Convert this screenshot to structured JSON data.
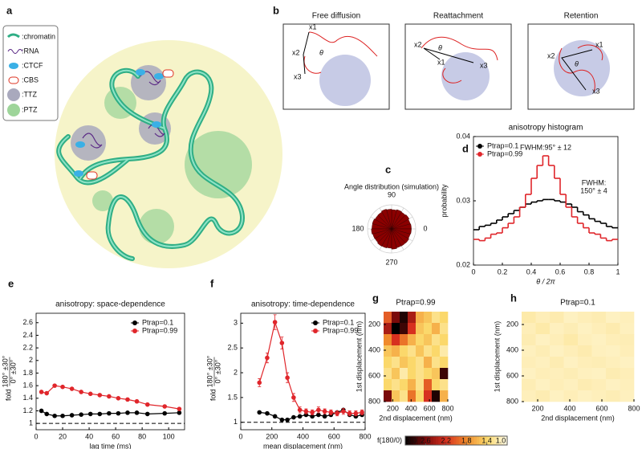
{
  "panel_labels": [
    "a",
    "b",
    "c",
    "d",
    "e",
    "f",
    "g",
    "h"
  ],
  "diagram": {
    "legend": [
      ":chromatin",
      ":RNA",
      ":CTCF",
      ":CBS",
      ":TTZ",
      ":PTZ"
    ],
    "b": [
      {
        "title": "Free diffusion",
        "labels": [
          "x1",
          "x2",
          "x3",
          "θ"
        ]
      },
      {
        "title": "Reattachment",
        "labels": [
          "x1",
          "x2",
          "x3",
          "θ"
        ]
      },
      {
        "title": "Retention",
        "labels": [
          "x1",
          "x2",
          "x3",
          "θ"
        ]
      }
    ]
  },
  "colorbar": {
    "label": "f(180/0)",
    "ticks": [
      {
        "value": 3,
        "label": "3.0"
      },
      {
        "value": 2.6,
        "label": "2.6"
      },
      {
        "value": 2.2,
        "label": "2.2"
      },
      {
        "value": 1.8,
        "label": "1.8"
      },
      {
        "value": 1.4,
        "label": "1.4"
      },
      {
        "value": 1,
        "label": "1.0"
      }
    ],
    "colors": [
      "#000000",
      "#7a0a0a",
      "#d7301f",
      "#f08a2c",
      "#fbd86b",
      "#fffbe6"
    ]
  },
  "chart_data": [
    {
      "type": "polar",
      "title": "Angle distribution (simulation)",
      "thetaticks": [
        90,
        180,
        0,
        270
      ],
      "values": [
        0.82,
        0.8,
        0.84,
        0.81,
        0.83,
        0.8,
        0.82,
        0.85,
        0.81,
        0.8,
        0.83,
        0.82,
        0.84,
        0.81,
        0.8,
        0.83,
        0.82,
        0.8,
        0.84,
        0.81,
        0.82,
        0.83,
        0.8,
        0.82
      ],
      "rlim": [
        0,
        1
      ],
      "color": "#8b0000"
    },
    {
      "type": "histogram",
      "title": "anisotropy histogram",
      "xlabel": "θ / 2π",
      "ylabel": "probability",
      "bins": [
        0,
        0.04,
        0.08,
        0.12,
        0.16,
        0.2,
        0.24,
        0.28,
        0.32,
        0.36,
        0.4,
        0.44,
        0.48,
        0.52,
        0.56,
        0.6,
        0.64,
        0.68,
        0.72,
        0.76,
        0.8,
        0.84,
        0.88,
        0.92,
        0.96,
        1
      ],
      "series": [
        {
          "name": "Ptrap=0.1",
          "color": "#000000",
          "values": [
            0.0255,
            0.026,
            0.0262,
            0.0265,
            0.027,
            0.0275,
            0.028,
            0.0285,
            0.029,
            0.0295,
            0.0298,
            0.03,
            0.0302,
            0.0302,
            0.03,
            0.0298,
            0.0295,
            0.029,
            0.0283,
            0.0278,
            0.0272,
            0.0268,
            0.0265,
            0.026,
            0.0258
          ]
        },
        {
          "name": "Ptrap=0.99",
          "color": "#e0262b",
          "values": [
            0.024,
            0.0238,
            0.0242,
            0.0248,
            0.025,
            0.0258,
            0.0265,
            0.0275,
            0.029,
            0.031,
            0.0335,
            0.0355,
            0.037,
            0.0355,
            0.0335,
            0.031,
            0.029,
            0.0275,
            0.0265,
            0.0258,
            0.025,
            0.0248,
            0.0242,
            0.0238,
            0.024
          ]
        }
      ],
      "annotations": [
        "FWHM:95° ± 12",
        "FWHM:",
        "150° ± 4"
      ],
      "xlim": [
        0,
        1
      ],
      "xticks": [
        0,
        0.2,
        0.4,
        0.6,
        0.8,
        1
      ],
      "ylim": [
        0.02,
        0.04
      ],
      "yticks": [
        0.02,
        0.03,
        0.04
      ],
      "legend": "upper left"
    },
    {
      "type": "line",
      "title": "anisotropy: space-dependence",
      "xlabel": "lag time (ms)",
      "ylabel": "fold",
      "ylabel_numerator": "180° ±30°",
      "ylabel_denominator": "0° ±30°",
      "x": [
        4,
        8,
        14,
        20,
        27,
        34,
        41,
        48,
        55,
        62,
        69,
        76,
        84,
        97,
        108
      ],
      "series": [
        {
          "name": "Ptrap=0.1",
          "color": "#000000",
          "values": [
            1.2,
            1.15,
            1.12,
            1.12,
            1.13,
            1.14,
            1.15,
            1.15,
            1.16,
            1.16,
            1.17,
            1.17,
            1.15,
            1.16,
            1.17
          ]
        },
        {
          "name": "Ptrap=0.99",
          "color": "#e0262b",
          "values": [
            1.5,
            1.48,
            1.6,
            1.58,
            1.55,
            1.5,
            1.47,
            1.45,
            1.43,
            1.4,
            1.38,
            1.35,
            1.3,
            1.27,
            1.23
          ]
        }
      ],
      "reference_line": 1,
      "xlim": [
        0,
        112
      ],
      "xticks": [
        0,
        20,
        40,
        60,
        80,
        100
      ],
      "ylim": [
        0.9,
        2.75
      ],
      "yticks": [
        1,
        1.2,
        1.4,
        1.6,
        1.8,
        2,
        2.2,
        2.4,
        2.6
      ],
      "legend": "upper right"
    },
    {
      "type": "line",
      "title": "anisotropy: time-dependence",
      "xlabel": "mean displacement (nm)",
      "ylabel": "fold",
      "ylabel_numerator": "180° ±30°",
      "ylabel_denominator": "0° ±30°",
      "x": [
        120,
        170,
        220,
        265,
        300,
        340,
        380,
        420,
        460,
        500,
        540,
        580,
        620,
        660,
        700,
        740,
        780
      ],
      "series": [
        {
          "name": "Ptrap=0.1",
          "color": "#000000",
          "values": [
            1.2,
            1.18,
            1.12,
            1.05,
            1.05,
            1.1,
            1.12,
            1.15,
            1.12,
            1.15,
            1.12,
            1.15,
            1.2,
            1.25,
            1.15,
            1.12,
            1.15
          ]
        },
        {
          "name": "Ptrap=0.99",
          "color": "#e0262b",
          "values": [
            1.8,
            2.3,
            3.02,
            2.6,
            1.9,
            1.5,
            1.25,
            1.22,
            1.2,
            1.25,
            1.22,
            1.2,
            1.18,
            1.22,
            1.18,
            1.18,
            1.2
          ],
          "errors": [
            0.08,
            0.1,
            0.15,
            0.12,
            0.1,
            0.08,
            0.06,
            0.05,
            0.05,
            0.06,
            0.05,
            0.05,
            0.05,
            0.06,
            0.05,
            0.05,
            0.05
          ]
        }
      ],
      "reference_line": 1,
      "xlim": [
        0,
        800
      ],
      "xticks": [
        0,
        200,
        400,
        600,
        800
      ],
      "ylim": [
        0.85,
        3.2
      ],
      "yticks": [
        1,
        1.5,
        2,
        2.5,
        3
      ],
      "legend": "upper right"
    },
    {
      "type": "heatmap",
      "title": "Ptrap=0.99",
      "xlabel": "2nd displacement (nm)",
      "ylabel": "1st displacement (nm)",
      "z": [
        [
          2.0,
          2.6,
          2.9,
          2.4,
          1.6,
          1.5,
          1.3,
          1.4
        ],
        [
          2.4,
          3.0,
          2.8,
          2.2,
          1.5,
          1.4,
          1.6,
          1.3
        ],
        [
          1.8,
          2.2,
          1.9,
          1.6,
          1.4,
          1.5,
          1.3,
          1.4
        ],
        [
          1.5,
          1.6,
          1.4,
          1.3,
          1.5,
          1.3,
          1.4,
          1.2
        ],
        [
          1.4,
          1.3,
          1.5,
          1.4,
          1.3,
          1.6,
          1.3,
          1.4
        ],
        [
          1.3,
          1.5,
          1.2,
          1.4,
          1.3,
          1.4,
          1.5,
          2.8
        ],
        [
          1.4,
          1.3,
          1.4,
          1.6,
          1.3,
          2.0,
          1.4,
          1.3
        ],
        [
          2.6,
          1.5,
          1.3,
          1.9,
          1.4,
          2.2,
          2.9,
          1.6
        ]
      ],
      "xlim": [
        100,
        800
      ],
      "xticks": [
        200,
        400,
        600,
        800
      ],
      "ylim": [
        100,
        800
      ],
      "yticks": [
        200,
        400,
        600,
        800
      ]
    },
    {
      "type": "heatmap",
      "title": "Ptrap=0.1",
      "xlabel": "2nd displacement (nm)",
      "ylabel": "1st displacement (nm)",
      "z": [
        [
          1.2,
          1.15,
          1.18,
          1.12,
          1.15,
          1.17,
          1.12,
          1.14
        ],
        [
          1.15,
          1.2,
          1.13,
          1.16,
          1.12,
          1.15,
          1.18,
          1.13
        ],
        [
          1.17,
          1.12,
          1.15,
          1.2,
          1.14,
          1.12,
          1.15,
          1.16
        ],
        [
          1.13,
          1.16,
          1.12,
          1.15,
          1.18,
          1.13,
          1.12,
          1.15
        ],
        [
          1.15,
          1.13,
          1.17,
          1.12,
          1.15,
          1.16,
          1.14,
          1.12
        ],
        [
          1.12,
          1.15,
          1.14,
          1.16,
          1.13,
          1.12,
          1.17,
          1.15
        ],
        [
          1.16,
          1.12,
          1.15,
          1.13,
          1.17,
          1.15,
          1.12,
          1.14
        ],
        [
          1.14,
          1.17,
          1.12,
          1.15,
          1.12,
          1.14,
          1.16,
          1.13
        ]
      ],
      "xlim": [
        100,
        800
      ],
      "xticks": [
        200,
        400,
        600,
        800
      ],
      "ylim": [
        100,
        800
      ],
      "yticks": [
        200,
        400,
        600,
        800
      ]
    }
  ]
}
